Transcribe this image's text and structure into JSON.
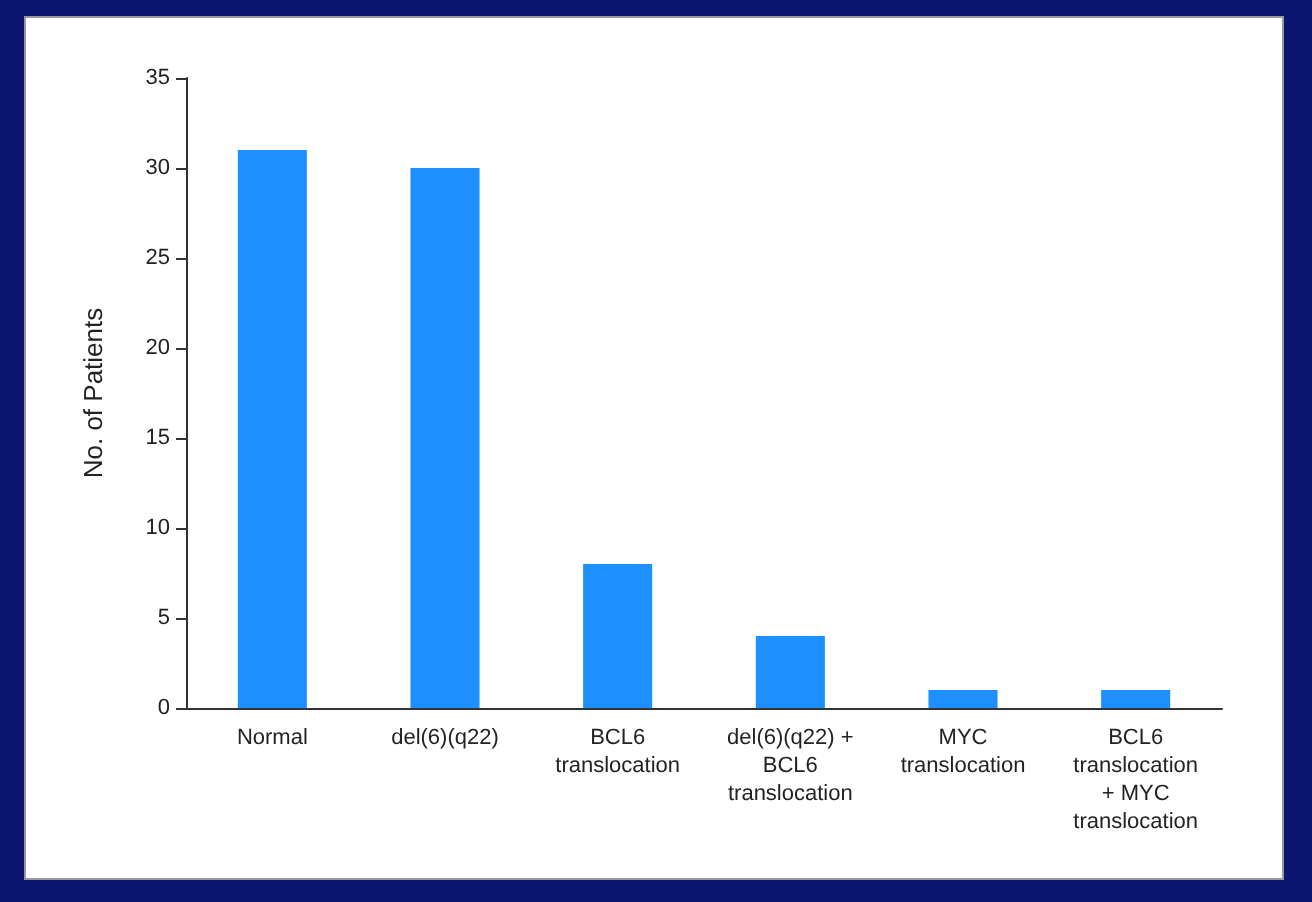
{
  "chart_data": {
    "type": "bar",
    "ylabel": "No. of Patients",
    "categories": [
      "Normal",
      "del(6)(q22)",
      "BCL6\ntranslocation",
      "del(6)(q22) +\nBCL6\ntranslocation",
      "MYC\ntranslocation",
      "BCL6\ntranslocation\n+ MYC\ntranslocation"
    ],
    "values": [
      31,
      30,
      8,
      4,
      1,
      1
    ],
    "color": "#1e8fff",
    "ylim": [
      0,
      35
    ],
    "yticks": [
      0,
      5,
      10,
      15,
      20,
      25,
      30,
      35
    ],
    "grid": false
  }
}
